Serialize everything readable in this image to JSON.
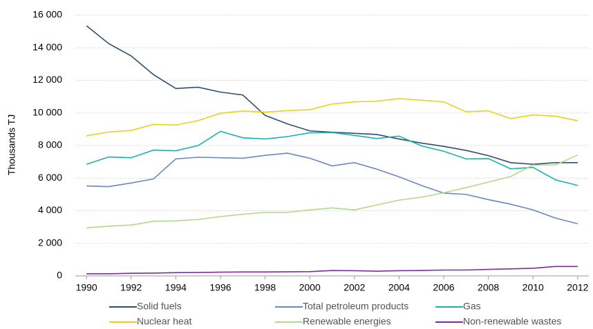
{
  "chart_data": {
    "type": "line",
    "y_label": "Thousands TJ",
    "x": [
      1990,
      1991,
      1992,
      1993,
      1994,
      1995,
      1996,
      1997,
      1998,
      1999,
      2000,
      2001,
      2002,
      2003,
      2004,
      2005,
      2006,
      2007,
      2008,
      2009,
      2010,
      2011,
      2012
    ],
    "xlim": [
      1989.5,
      2012.5
    ],
    "xticks": [
      1990,
      1992,
      1994,
      1996,
      1998,
      2000,
      2002,
      2004,
      2006,
      2008,
      2010,
      2012
    ],
    "ylim": [
      0,
      16000
    ],
    "yticks": [
      0,
      {
        "value": 2000,
        "label": "2 000"
      },
      {
        "value": 4000,
        "label": "4 000"
      },
      {
        "value": 6000,
        "label": "6 000"
      },
      {
        "value": 8000,
        "label": "8 000"
      },
      {
        "value": 10000,
        "label": "10 000"
      },
      {
        "value": 12000,
        "label": "12 000"
      },
      {
        "value": 14000,
        "label": "14 000"
      },
      {
        "value": 16000,
        "label": "16 000"
      }
    ],
    "grid": true,
    "legend": "bottom",
    "series": [
      {
        "name": "Solid fuels",
        "color": "#2e4d6e",
        "values": [
          15350,
          14250,
          13500,
          12350,
          11500,
          11580,
          11280,
          11100,
          9850,
          9330,
          8900,
          8820,
          8750,
          8680,
          8400,
          8150,
          7950,
          7700,
          7380,
          6950,
          6850,
          6950,
          6950
        ]
      },
      {
        "name": "Total petroleum products",
        "color": "#6b86c2",
        "values": [
          5520,
          5480,
          5700,
          5950,
          7180,
          7280,
          7250,
          7220,
          7400,
          7530,
          7220,
          6750,
          6950,
          6550,
          6080,
          5550,
          5080,
          5000,
          4680,
          4400,
          4050,
          3550,
          3200
        ]
      },
      {
        "name": "Gas",
        "color": "#1ab0b0",
        "values": [
          6850,
          7300,
          7250,
          7720,
          7680,
          8000,
          8870,
          8480,
          8400,
          8550,
          8780,
          8800,
          8620,
          8430,
          8580,
          7980,
          7650,
          7180,
          7200,
          6570,
          6660,
          5900,
          5550
        ]
      },
      {
        "name": "Nuclear heat",
        "color": "#e6d21a",
        "values": [
          8600,
          8830,
          8930,
          9300,
          9260,
          9530,
          9980,
          10120,
          10050,
          10140,
          10200,
          10550,
          10680,
          10720,
          10880,
          10780,
          10680,
          10070,
          10130,
          9650,
          9880,
          9800,
          9520
        ]
      },
      {
        "name": "Renewable energies",
        "color": "#b2d88a",
        "values": [
          2950,
          3050,
          3120,
          3350,
          3380,
          3460,
          3640,
          3780,
          3900,
          3900,
          4050,
          4170,
          4050,
          4350,
          4650,
          4830,
          5100,
          5420,
          5750,
          6100,
          6800,
          6800,
          7420
        ]
      },
      {
        "name": "Non-renewable wastes",
        "color": "#7b2d9e",
        "values": [
          130,
          130,
          160,
          170,
          200,
          210,
          230,
          240,
          240,
          250,
          260,
          330,
          320,
          290,
          320,
          330,
          360,
          360,
          400,
          430,
          470,
          580,
          580
        ]
      }
    ]
  }
}
